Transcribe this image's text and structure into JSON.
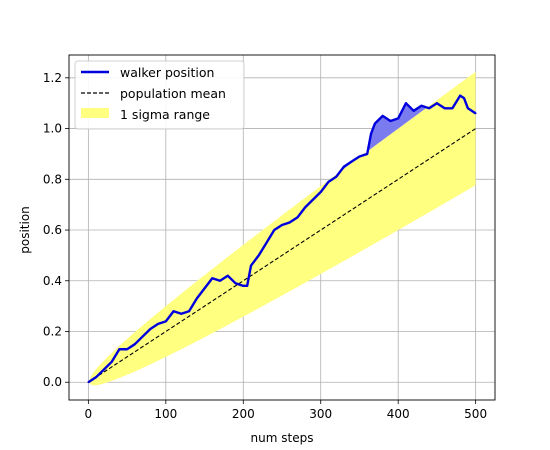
{
  "chart_data": {
    "type": "line",
    "xlabel": "num steps",
    "ylabel": "position",
    "xlim": [
      -25,
      525
    ],
    "ylim": [
      -0.07,
      1.29
    ],
    "xticks": [
      0,
      100,
      200,
      300,
      400,
      500
    ],
    "yticks": [
      0.0,
      0.2,
      0.4,
      0.6,
      0.8,
      1.0,
      1.2
    ],
    "xtick_labels": [
      "0",
      "100",
      "200",
      "300",
      "400",
      "500"
    ],
    "ytick_labels": [
      "0.0",
      "0.2",
      "0.4",
      "0.6",
      "0.8",
      "1.0",
      "1.2"
    ],
    "grid": true,
    "legend_position": "upper-left",
    "legend": {
      "walker": "walker position",
      "mean": "population mean",
      "sigma": "1 sigma range"
    },
    "colors": {
      "walker": "#0000dd",
      "mean": "#000000",
      "sigma_band": "#ffff80",
      "above_band_fill": "#7b7bf0"
    },
    "mean_slope": 0.002,
    "sigma_coefficient": 0.01,
    "walker_position": {
      "x": [
        0,
        10,
        20,
        30,
        40,
        50,
        60,
        70,
        80,
        90,
        100,
        110,
        120,
        130,
        140,
        150,
        160,
        170,
        180,
        190,
        200,
        205,
        210,
        220,
        230,
        240,
        250,
        260,
        270,
        280,
        290,
        300,
        310,
        320,
        330,
        340,
        350,
        360,
        365,
        370,
        380,
        390,
        400,
        410,
        420,
        430,
        440,
        450,
        460,
        470,
        480,
        485,
        490,
        500
      ],
      "y": [
        0.0,
        0.02,
        0.05,
        0.08,
        0.13,
        0.13,
        0.15,
        0.18,
        0.21,
        0.23,
        0.24,
        0.28,
        0.27,
        0.28,
        0.33,
        0.37,
        0.41,
        0.4,
        0.42,
        0.39,
        0.38,
        0.38,
        0.46,
        0.5,
        0.55,
        0.6,
        0.62,
        0.63,
        0.65,
        0.69,
        0.72,
        0.75,
        0.79,
        0.81,
        0.85,
        0.87,
        0.89,
        0.9,
        0.98,
        1.02,
        1.05,
        1.03,
        1.04,
        1.1,
        1.07,
        1.09,
        1.08,
        1.1,
        1.08,
        1.08,
        1.13,
        1.12,
        1.08,
        1.06
      ]
    }
  }
}
